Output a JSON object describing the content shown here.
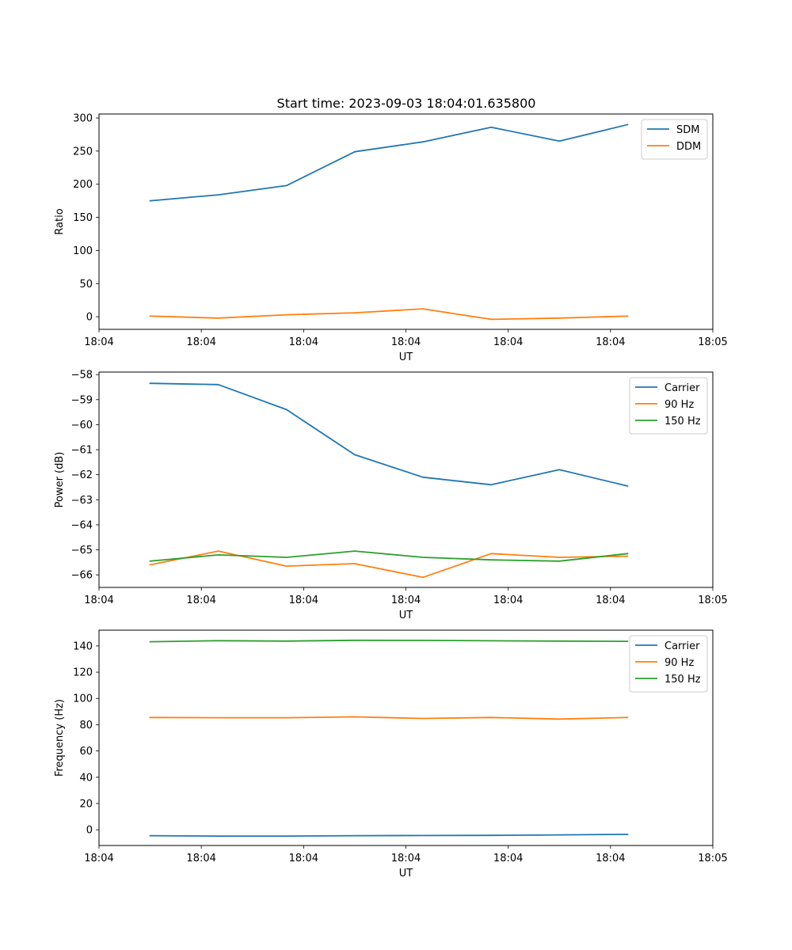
{
  "figure_title": "Start time: 2023-09-03 18:04:01.635800",
  "colors": {
    "blue": "#1f77b4",
    "orange": "#ff7f0e",
    "green": "#2ca02c"
  },
  "chart_data": [
    {
      "type": "line",
      "title": "Start time: 2023-09-03 18:04:01.635800",
      "xlabel": "UT",
      "ylabel": "Ratio",
      "x": [
        1,
        2,
        3,
        4,
        5,
        6,
        7,
        8
      ],
      "xlim": [
        0.25,
        9.25
      ],
      "ylim": [
        -19,
        306
      ],
      "yticks": [
        0,
        50,
        100,
        150,
        200,
        250,
        300
      ],
      "ytick_labels": [
        "0",
        "50",
        "100",
        "150",
        "200",
        "250",
        "300"
      ],
      "xticks": [
        0.25,
        1.75,
        3.25,
        4.75,
        6.25,
        7.75,
        9.25
      ],
      "xtick_labels": [
        "18:04",
        "18:04",
        "18:04",
        "18:04",
        "18:04",
        "18:04",
        "18:05"
      ],
      "legend_loc": "top-right",
      "series": [
        {
          "name": "SDM",
          "color": "#1f77b4",
          "values": [
            175,
            184,
            198,
            249,
            264,
            286,
            265,
            290
          ]
        },
        {
          "name": "DDM",
          "color": "#ff7f0e",
          "values": [
            1,
            -2,
            3,
            6,
            12,
            -4,
            -2,
            1
          ]
        }
      ]
    },
    {
      "type": "line",
      "title": "",
      "xlabel": "UT",
      "ylabel": "Power (dB)",
      "x": [
        1,
        2,
        3,
        4,
        5,
        6,
        7,
        8
      ],
      "xlim": [
        0.25,
        9.25
      ],
      "ylim": [
        -66.5,
        -57.9
      ],
      "yticks": [
        -58,
        -59,
        -60,
        -61,
        -62,
        -63,
        -64,
        -65,
        -66
      ],
      "ytick_labels": [
        "−58",
        "−59",
        "−60",
        "−61",
        "−62",
        "−63",
        "−64",
        "−65",
        "−66"
      ],
      "xticks": [
        0.25,
        1.75,
        3.25,
        4.75,
        6.25,
        7.75,
        9.25
      ],
      "xtick_labels": [
        "18:04",
        "18:04",
        "18:04",
        "18:04",
        "18:04",
        "18:04",
        "18:05"
      ],
      "legend_loc": "top-right",
      "series": [
        {
          "name": "Carrier",
          "color": "#1f77b4",
          "values": [
            -58.35,
            -58.4,
            -59.4,
            -61.2,
            -62.1,
            -62.4,
            -61.8,
            -62.45
          ]
        },
        {
          "name": "90 Hz",
          "color": "#ff7f0e",
          "values": [
            -65.6,
            -65.05,
            -65.65,
            -65.55,
            -66.1,
            -65.15,
            -65.3,
            -65.25
          ]
        },
        {
          "name": "150 Hz",
          "color": "#2ca02c",
          "values": [
            -65.45,
            -65.2,
            -65.3,
            -65.05,
            -65.3,
            -65.4,
            -65.45,
            -65.15
          ]
        }
      ]
    },
    {
      "type": "line",
      "title": "",
      "xlabel": "UT",
      "ylabel": "Frequency (Hz)",
      "x": [
        1,
        2,
        3,
        4,
        5,
        6,
        7,
        8
      ],
      "xlim": [
        0.25,
        9.25
      ],
      "ylim": [
        -12,
        152
      ],
      "yticks": [
        0,
        20,
        40,
        60,
        80,
        100,
        120,
        140
      ],
      "ytick_labels": [
        "0",
        "20",
        "40",
        "60",
        "80",
        "100",
        "120",
        "140"
      ],
      "xticks": [
        0.25,
        1.75,
        3.25,
        4.75,
        6.25,
        7.75,
        9.25
      ],
      "xtick_labels": [
        "18:04",
        "18:04",
        "18:04",
        "18:04",
        "18:04",
        "18:04",
        "18:05"
      ],
      "legend_loc": "top-right",
      "series": [
        {
          "name": "Carrier",
          "color": "#1f77b4",
          "values": [
            -4.5,
            -4.8,
            -4.8,
            -4.5,
            -4.4,
            -4.3,
            -3.9,
            -3.5
          ]
        },
        {
          "name": "90 Hz",
          "color": "#ff7f0e",
          "values": [
            85.5,
            85.3,
            85.3,
            86.0,
            84.8,
            85.5,
            84.3,
            85.5
          ]
        },
        {
          "name": "150 Hz",
          "color": "#2ca02c",
          "values": [
            143.2,
            144.0,
            143.7,
            144.3,
            144.2,
            143.9,
            143.7,
            143.5
          ]
        }
      ]
    }
  ]
}
